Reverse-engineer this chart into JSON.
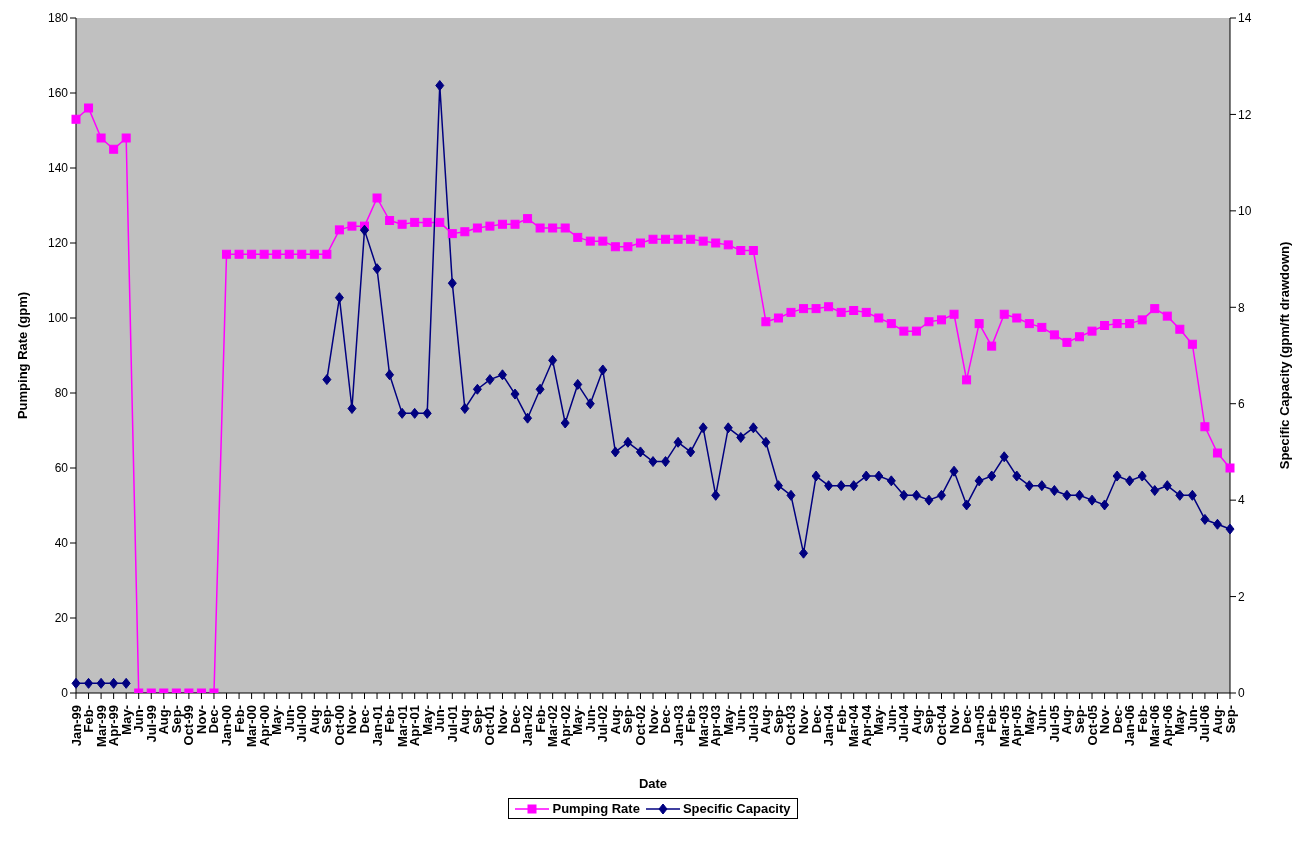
{
  "chart_data": {
    "type": "line",
    "xlabel": "Date",
    "ylabel": "Pumping Rate (gpm)",
    "y2label": "Specific Capacity (gpm/ft drawdown)",
    "categories": [
      "Jan-99",
      "Feb-",
      "Mar-99",
      "Apr-99",
      "May-",
      "Jun-",
      "Jul-99",
      "Aug-",
      "Sep-",
      "Oct-99",
      "Nov-",
      "Dec-",
      "Jan-00",
      "Feb-",
      "Mar-00",
      "Apr-00",
      "May-",
      "Jun-",
      "Jul-00",
      "Aug-",
      "Sep-",
      "Oct-00",
      "Nov-",
      "Dec-",
      "Jan-01",
      "Feb-",
      "Mar-01",
      "Apr-01",
      "May-",
      "Jun-",
      "Jul-01",
      "Aug-",
      "Sep-",
      "Oct-01",
      "Nov-",
      "Dec-",
      "Jan-02",
      "Feb-",
      "Mar-02",
      "Apr-02",
      "May-",
      "Jun-",
      "Jul-02",
      "Aug-",
      "Sep-",
      "Oct-02",
      "Nov-",
      "Dec-",
      "Jan-03",
      "Feb-",
      "Mar-03",
      "Apr-03",
      "May-",
      "Jun-",
      "Jul-03",
      "Aug-",
      "Sep-",
      "Oct-03",
      "Nov-",
      "Dec-",
      "Jan-04",
      "Feb-",
      "Mar-04",
      "Apr-04",
      "May-",
      "Jun-",
      "Jul-04",
      "Aug-",
      "Sep-",
      "Oct-04",
      "Nov-",
      "Dec-",
      "Jan-05",
      "Feb-",
      "Mar-05",
      "Apr-05",
      "May-",
      "Jun-",
      "Jul-05",
      "Aug-",
      "Sep-",
      "Oct-05",
      "Nov-",
      "Dec-",
      "Jan-06",
      "Feb-",
      "Mar-06",
      "Apr-06",
      "May-",
      "Jun-",
      "Jul-06",
      "Aug-",
      "Sep-"
    ],
    "series": [
      {
        "name": "Pumping Rate",
        "color": "#ff00ff",
        "marker": "square",
        "values": [
          153,
          156,
          148,
          145,
          148,
          0,
          0,
          0,
          0,
          0,
          0,
          0,
          117,
          117,
          117,
          117,
          117,
          117,
          117,
          117,
          117,
          123.5,
          124.5,
          124.5,
          132,
          126,
          125,
          125.5,
          125.5,
          125.5,
          122.5,
          123,
          124,
          124.5,
          125,
          125,
          126.5,
          124,
          124,
          124,
          121.5,
          120.5,
          120.5,
          119,
          119,
          120,
          121,
          121,
          121,
          121,
          120.5,
          120,
          119.5,
          118,
          118,
          99,
          100,
          101.5,
          102.5,
          102.5,
          103,
          101.5,
          102,
          101.5,
          100,
          98.5,
          96.5,
          96.5,
          99,
          99.5,
          101,
          83.5,
          98.5,
          92.5,
          101,
          100,
          98.5,
          97.5,
          95.5,
          93.5,
          95,
          96.5,
          98,
          98.5,
          98.5,
          99.5,
          102.5,
          100.5,
          97,
          93,
          71,
          64,
          60
        ]
      },
      {
        "name": "Specific Capacity",
        "color": "#000080",
        "marker": "diamond",
        "axis": "y2",
        "values": [
          0.2,
          0.2,
          0.2,
          0.2,
          0.2,
          null,
          null,
          null,
          null,
          null,
          null,
          null,
          null,
          null,
          null,
          null,
          null,
          null,
          null,
          null,
          6.5,
          8.2,
          5.9,
          9.6,
          8.8,
          6.6,
          5.8,
          5.8,
          5.8,
          12.6,
          8.5,
          5.9,
          6.3,
          6.5,
          6.6,
          6.2,
          5.7,
          6.3,
          6.9,
          5.6,
          6.4,
          6.0,
          6.7,
          5.0,
          5.2,
          5.0,
          4.8,
          4.8,
          5.2,
          5.0,
          5.5,
          4.1,
          5.5,
          5.3,
          5.5,
          5.2,
          4.3,
          4.1,
          2.9,
          4.5,
          4.3,
          4.3,
          4.3,
          4.5,
          4.5,
          4.4,
          4.1,
          4.1,
          4.0,
          4.1,
          4.6,
          3.9,
          4.4,
          4.5,
          4.9,
          4.5,
          4.3,
          4.3,
          4.2,
          4.1,
          4.1,
          4.0,
          3.9,
          4.5,
          4.4,
          4.5,
          4.2,
          4.3,
          4.1,
          4.1,
          3.6,
          3.5,
          3.4
        ]
      }
    ],
    "ylim": [
      0,
      180
    ],
    "yticks": [
      0,
      20,
      40,
      60,
      80,
      100,
      120,
      140,
      160,
      180
    ],
    "y2lim": [
      0,
      14
    ],
    "y2ticks": [
      0,
      2,
      4,
      6,
      8,
      10,
      12,
      14
    ],
    "grid": false,
    "legend": "bottom",
    "line_style": "solid"
  }
}
